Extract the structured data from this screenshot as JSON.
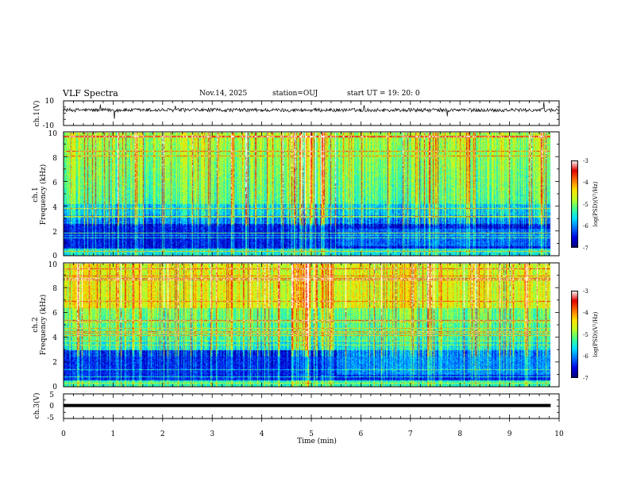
{
  "header": {
    "title": "VLF Spectra",
    "date": "Nov.14, 2025",
    "station": "station=OUJ",
    "start_ut": "start  UT =   19: 20: 0"
  },
  "colors": {
    "spectrogram_scale": [
      "#00007a",
      "#0000e0",
      "#0070ff",
      "#00e0ff",
      "#40ff90",
      "#c0ff20",
      "#ffe000",
      "#ff7000",
      "#e00000",
      "#ffffff"
    ]
  },
  "chart_data": [
    {
      "type": "line",
      "name": "ch1-waveform",
      "ylabel": "ch.1(V)",
      "ylim": [
        -10,
        10
      ],
      "y_ticks": [
        "10",
        "-10"
      ],
      "x_range_min": [
        0,
        10
      ],
      "baseline_v": 2.5,
      "noise_amplitude_v": 1.5
    },
    {
      "type": "heatmap",
      "name": "ch1-spectrogram",
      "ylabel_line1": "ch.1",
      "ylabel_line2": "Frequency (kHz)",
      "ylim_khz": [
        0,
        10
      ],
      "y_ticks": [
        "0",
        "2",
        "4",
        "6",
        "8",
        "10"
      ],
      "x_range_min": [
        0,
        9.83
      ],
      "colorbar": {
        "label": "log(PSD)(V²/Hz)",
        "range": [
          -7,
          -3
        ],
        "ticks": [
          "-3",
          "-4",
          "-5",
          "-6",
          "-7"
        ]
      }
    },
    {
      "type": "heatmap",
      "name": "ch2-spectrogram",
      "ylabel_line1": "ch.2",
      "ylabel_line2": "Frequency (kHz)",
      "ylim_khz": [
        0,
        10
      ],
      "y_ticks": [
        "0",
        "2",
        "4",
        "6",
        "8",
        "10"
      ],
      "x_range_min": [
        0,
        9.83
      ],
      "colorbar": {
        "label": "log(PSD)(V²/Hz)",
        "range": [
          -7,
          -3
        ],
        "ticks": [
          "-3",
          "-4",
          "-5",
          "-6",
          "-7"
        ]
      }
    },
    {
      "type": "line",
      "name": "ch3-waveform",
      "ylabel": "ch.3(V)",
      "ylim": [
        -5,
        5
      ],
      "y_ticks": [
        "5",
        "0",
        "-5"
      ],
      "x_range_min": [
        0,
        9.83
      ],
      "constant_v": 0.3
    }
  ],
  "x_axis": {
    "label": "Time (min)",
    "range": [
      0,
      10
    ],
    "ticks": [
      "0",
      "1",
      "2",
      "3",
      "4",
      "5",
      "6",
      "7",
      "8",
      "9",
      "10"
    ]
  }
}
